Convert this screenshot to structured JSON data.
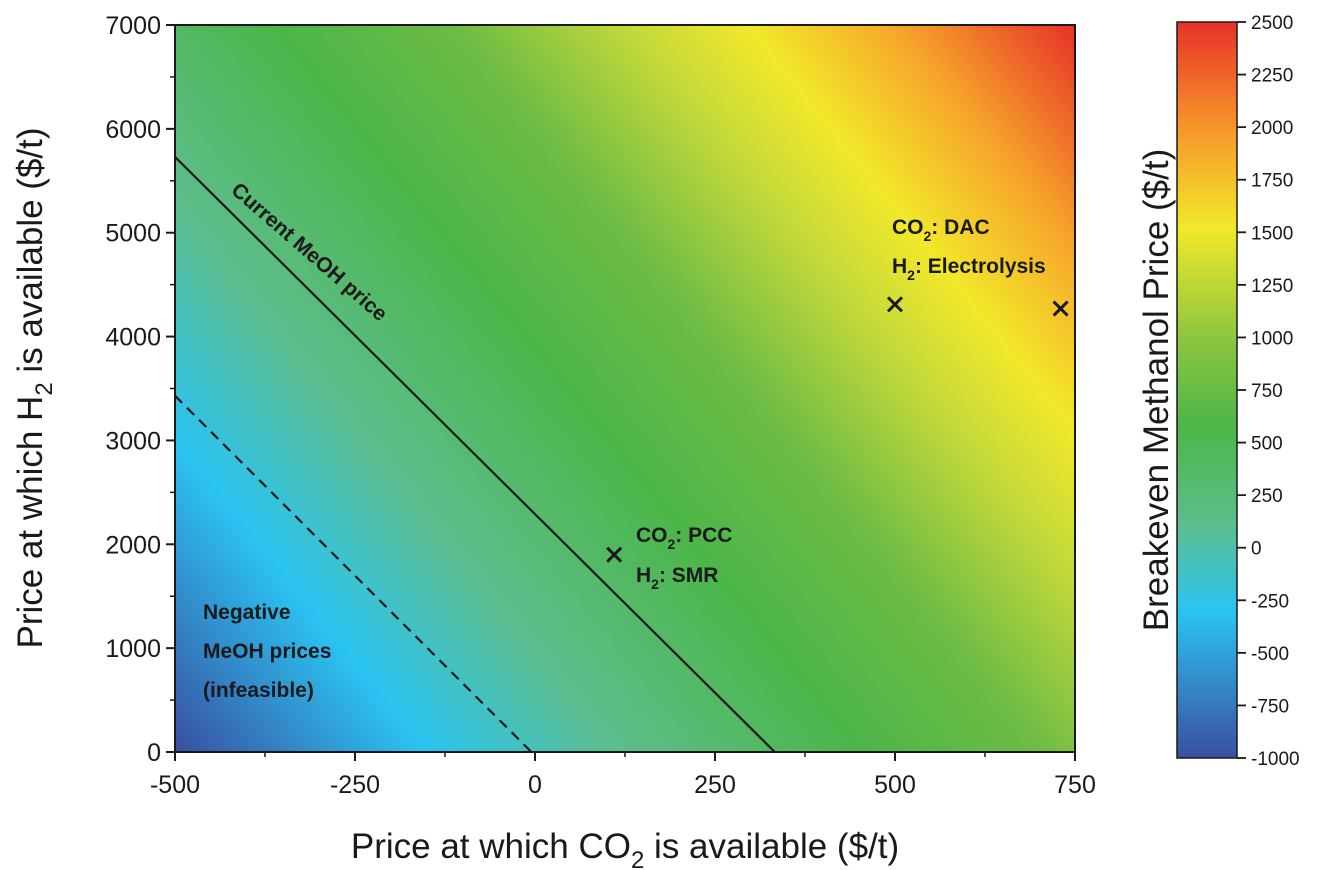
{
  "chart_data": {
    "type": "heatmap",
    "xlabel": "Price at which CO2 is available ($/t)",
    "ylabel": "Price at which H2 is available ($/t)",
    "xlim": [
      -500,
      750
    ],
    "ylim": [
      0,
      7000
    ],
    "x_ticks": [
      "-500",
      "-250",
      "0",
      "250",
      "500",
      "750"
    ],
    "x_tick_values": [
      -500,
      -250,
      0,
      250,
      500,
      750
    ],
    "y_ticks": [
      "0",
      "1000",
      "2000",
      "3000",
      "4000",
      "5000",
      "6000",
      "7000"
    ],
    "y_tick_values": [
      0,
      1000,
      2000,
      3000,
      4000,
      5000,
      6000,
      7000
    ],
    "colorbar": {
      "label": "Breakeven Methanol Price ($/t)",
      "range": [
        -1000,
        2500
      ],
      "ticks": [
        "-1000",
        "-750",
        "-500",
        "-250",
        "0",
        "250",
        "500",
        "750",
        "1000",
        "1250",
        "1500",
        "1750",
        "2000",
        "2250",
        "2500"
      ],
      "tick_values": [
        -1000,
        -750,
        -500,
        -250,
        0,
        250,
        500,
        750,
        1000,
        1250,
        1500,
        1750,
        2000,
        2250,
        2500
      ],
      "colors": [
        "#3a4fa0",
        "#2bc4f2",
        "#4cb649",
        "#f2e82a",
        "#e63228"
      ]
    },
    "lines": [
      {
        "name": "Current MeOH price",
        "style": "solid",
        "points": [
          [
            -500,
            5730
          ],
          [
            333,
            0
          ]
        ]
      },
      {
        "name": "",
        "style": "dashed",
        "points": [
          [
            -500,
            3430
          ],
          [
            -5,
            0
          ]
        ]
      }
    ],
    "points": [
      {
        "x": 110,
        "y": 1900
      },
      {
        "x": 500,
        "y": 4310
      },
      {
        "x": 730,
        "y": 4270
      }
    ],
    "annotations": [
      {
        "id": "current",
        "text": "Current MeOH price"
      },
      {
        "id": "pcc_co2",
        "text": "CO2: PCC"
      },
      {
        "id": "pcc_h2",
        "text": "H2: SMR"
      },
      {
        "id": "dac_co2",
        "text": "CO2: DAC"
      },
      {
        "id": "dac_h2",
        "text": "H2: Electrolysis"
      },
      {
        "id": "neg1",
        "text": "Negative"
      },
      {
        "id": "neg2",
        "text": "MeOH prices"
      },
      {
        "id": "neg3",
        "text": "(infeasible)"
      }
    ]
  }
}
